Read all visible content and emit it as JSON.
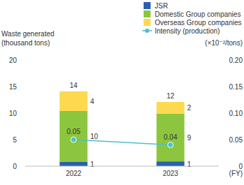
{
  "chart_data": {
    "type": "bar",
    "stacked": true,
    "categories": [
      "2022",
      "2023"
    ],
    "x_label": "(FY)",
    "y_label": [
      "Waste generated",
      "(thousand tons)"
    ],
    "y2_label": "(×10⁻²/tons)",
    "ylim": [
      0,
      20
    ],
    "yticks": [
      0,
      5,
      10,
      15,
      20
    ],
    "y2lim": [
      0,
      0.2
    ],
    "y2ticks": [
      0,
      0.05,
      {
        "value": 0.1,
        "label": "0.10"
      },
      0.15,
      {
        "value": 0.2,
        "label": "0.20"
      }
    ],
    "grid": false,
    "legend": "top-right",
    "data_labels": true,
    "totals": [
      14,
      12
    ],
    "series": [
      {
        "name": "JSR",
        "color": "#2b5fad",
        "values": [
          0.8,
          0.9
        ],
        "value_labels": [
          "1",
          "1"
        ]
      },
      {
        "name": "Domestic Group companies",
        "color": "#8cc63e",
        "values": [
          9.6,
          9.0
        ],
        "value_labels": [
          "10",
          "9"
        ]
      },
      {
        "name": "Overseas Group companies",
        "color": "#fdd94f",
        "values": [
          3.7,
          2.2
        ],
        "value_labels": [
          "4",
          "2"
        ]
      },
      {
        "name": "Intensity (production)",
        "type": "line",
        "axis": "y2",
        "color": "#4fbfc8",
        "marker": "circle",
        "values": [
          0.05,
          0.04
        ]
      }
    ]
  }
}
